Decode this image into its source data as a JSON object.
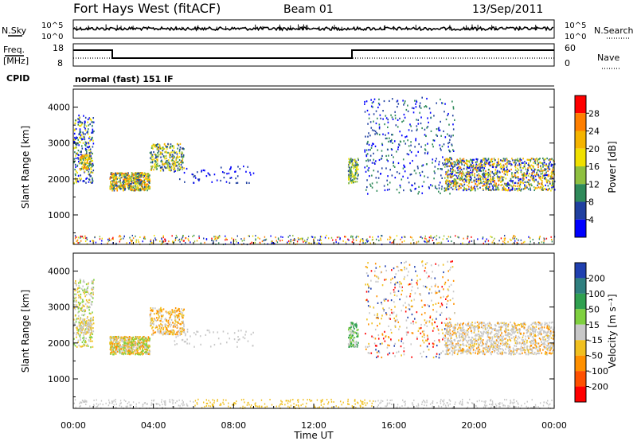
{
  "header": {
    "station": "Fort Hays West (fitACF)",
    "beam": "Beam 01",
    "date": "13/Sep/2011"
  },
  "panels": {
    "nsky": {
      "left_label": "N.Sky",
      "left_ticks": [
        "10^5",
        "10^0"
      ],
      "right_ticks": [
        "10^5",
        "10^0"
      ],
      "right_label": "N.Search"
    },
    "freq": {
      "left_label_1": "Freq.",
      "left_label_2": "[MHz]",
      "left_ticks": [
        "18",
        "8"
      ],
      "right_ticks": [
        "60",
        "0"
      ],
      "right_label": "Nave"
    },
    "cpid": {
      "label": "CPID",
      "text": "normal (fast) 151 IF"
    }
  },
  "colorbars": {
    "power": {
      "label": "Power [dB]",
      "ticks": [
        "28",
        "24",
        "20",
        "16",
        "12",
        "8",
        "4"
      ],
      "colors": [
        "#ff0000",
        "#ff7f00",
        "#f5b400",
        "#f0e000",
        "#8fc040",
        "#2f8a5a",
        "#2040a0",
        "#0000ff"
      ]
    },
    "velocity": {
      "label": "Velocity [m s⁻¹]",
      "ticks": [
        "200",
        "100",
        "50",
        "15",
        "-15",
        "-50",
        "-100",
        "-200"
      ],
      "colors": [
        "#2040b0",
        "#2f7f7f",
        "#30a050",
        "#7fd040",
        "#c8c8c8",
        "#f0c020",
        "#ff9000",
        "#ff5000",
        "#ff0000"
      ]
    }
  },
  "chart_data": [
    {
      "type": "heatmap",
      "name": "power",
      "ylabel": "Slant Range [km]",
      "xlim": [
        0,
        24
      ],
      "ylim": [
        180,
        4500
      ],
      "yticks": [
        1000,
        2000,
        3000,
        4000
      ],
      "xticks": [
        "00:00",
        "04:00",
        "08:00",
        "12:00",
        "16:00",
        "20:00",
        "00:00"
      ],
      "features": [
        {
          "t0": 0.0,
          "t1": 1.0,
          "r0": 1900,
          "r1": 3800,
          "level": "mixed"
        },
        {
          "t0": 1.8,
          "t1": 3.8,
          "r0": 1700,
          "r1": 2200,
          "level": "high"
        },
        {
          "t0": 3.8,
          "t1": 5.5,
          "r0": 2200,
          "r1": 3000,
          "level": "mid"
        },
        {
          "t0": 13.7,
          "t1": 14.2,
          "r0": 1900,
          "r1": 2600,
          "level": "mid"
        },
        {
          "t0": 14.5,
          "t1": 19.0,
          "r0": 1600,
          "r1": 4300,
          "level": "low"
        },
        {
          "t0": 18.5,
          "t1": 24.0,
          "r0": 1700,
          "r1": 2600,
          "level": "high"
        }
      ]
    },
    {
      "type": "heatmap",
      "name": "velocity",
      "ylabel": "Slant Range [km]",
      "xlabel": "Time UT",
      "xlim": [
        0,
        24
      ],
      "ylim": [
        180,
        4500
      ],
      "yticks": [
        1000,
        2000,
        3000,
        4000
      ],
      "xticks": [
        "00:00",
        "04:00",
        "08:00",
        "12:00",
        "16:00",
        "20:00",
        "00:00"
      ]
    }
  ]
}
